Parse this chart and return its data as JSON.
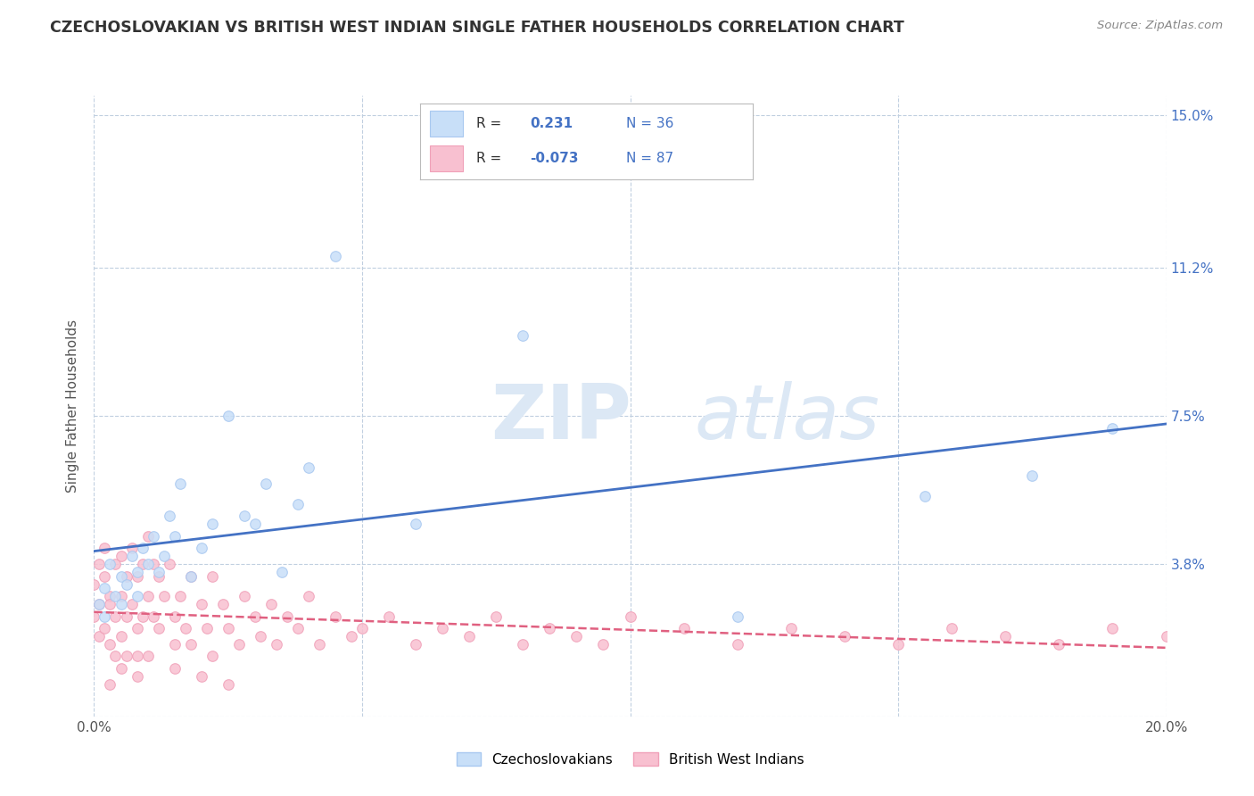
{
  "title": "CZECHOSLOVAKIAN VS BRITISH WEST INDIAN SINGLE FATHER HOUSEHOLDS CORRELATION CHART",
  "source": "Source: ZipAtlas.com",
  "ylabel": "Single Father Households",
  "xlim": [
    0.0,
    0.2
  ],
  "ylim": [
    0.0,
    0.155
  ],
  "ytick_positions": [
    0.0,
    0.038,
    0.075,
    0.112,
    0.15
  ],
  "ytick_labels": [
    "",
    "3.8%",
    "7.5%",
    "11.2%",
    "15.0%"
  ],
  "legend_label1": "Czechoslovakians",
  "legend_label2": "British West Indians",
  "color_czech": "#a8c8f0",
  "color_bwi": "#f0a0b8",
  "color_czech_fill": "#c8dff8",
  "color_bwi_fill": "#f8c0d0",
  "color_czech_line": "#4472c4",
  "color_bwi_line": "#e06080",
  "background_color": "#ffffff",
  "grid_color": "#c0cfe0",
  "czech_x": [
    0.001,
    0.002,
    0.002,
    0.003,
    0.004,
    0.005,
    0.005,
    0.006,
    0.007,
    0.008,
    0.008,
    0.009,
    0.01,
    0.011,
    0.012,
    0.013,
    0.014,
    0.015,
    0.016,
    0.018,
    0.02,
    0.022,
    0.025,
    0.028,
    0.03,
    0.032,
    0.035,
    0.038,
    0.04,
    0.045,
    0.06,
    0.08,
    0.12,
    0.155,
    0.175,
    0.19
  ],
  "czech_y": [
    0.028,
    0.032,
    0.025,
    0.038,
    0.03,
    0.035,
    0.028,
    0.033,
    0.04,
    0.036,
    0.03,
    0.042,
    0.038,
    0.045,
    0.036,
    0.04,
    0.05,
    0.045,
    0.058,
    0.035,
    0.042,
    0.048,
    0.075,
    0.05,
    0.048,
    0.058,
    0.036,
    0.053,
    0.062,
    0.115,
    0.048,
    0.095,
    0.025,
    0.055,
    0.06,
    0.072
  ],
  "bwi_x": [
    0.0,
    0.0,
    0.001,
    0.001,
    0.001,
    0.002,
    0.002,
    0.002,
    0.003,
    0.003,
    0.003,
    0.004,
    0.004,
    0.004,
    0.005,
    0.005,
    0.005,
    0.006,
    0.006,
    0.006,
    0.007,
    0.007,
    0.008,
    0.008,
    0.008,
    0.009,
    0.009,
    0.01,
    0.01,
    0.011,
    0.011,
    0.012,
    0.012,
    0.013,
    0.014,
    0.015,
    0.015,
    0.016,
    0.017,
    0.018,
    0.018,
    0.02,
    0.021,
    0.022,
    0.022,
    0.024,
    0.025,
    0.027,
    0.028,
    0.03,
    0.031,
    0.033,
    0.034,
    0.036,
    0.038,
    0.04,
    0.042,
    0.045,
    0.048,
    0.05,
    0.055,
    0.06,
    0.065,
    0.07,
    0.075,
    0.08,
    0.085,
    0.09,
    0.095,
    0.1,
    0.11,
    0.12,
    0.13,
    0.14,
    0.15,
    0.16,
    0.17,
    0.18,
    0.19,
    0.2,
    0.003,
    0.005,
    0.008,
    0.01,
    0.015,
    0.02,
    0.025
  ],
  "bwi_y": [
    0.025,
    0.033,
    0.038,
    0.028,
    0.02,
    0.035,
    0.022,
    0.042,
    0.03,
    0.018,
    0.028,
    0.038,
    0.025,
    0.015,
    0.04,
    0.03,
    0.02,
    0.035,
    0.025,
    0.015,
    0.042,
    0.028,
    0.035,
    0.022,
    0.015,
    0.038,
    0.025,
    0.045,
    0.03,
    0.038,
    0.025,
    0.035,
    0.022,
    0.03,
    0.038,
    0.025,
    0.018,
    0.03,
    0.022,
    0.035,
    0.018,
    0.028,
    0.022,
    0.035,
    0.015,
    0.028,
    0.022,
    0.018,
    0.03,
    0.025,
    0.02,
    0.028,
    0.018,
    0.025,
    0.022,
    0.03,
    0.018,
    0.025,
    0.02,
    0.022,
    0.025,
    0.018,
    0.022,
    0.02,
    0.025,
    0.018,
    0.022,
    0.02,
    0.018,
    0.025,
    0.022,
    0.018,
    0.022,
    0.02,
    0.018,
    0.022,
    0.02,
    0.018,
    0.022,
    0.02,
    0.008,
    0.012,
    0.01,
    0.015,
    0.012,
    0.01,
    0.008
  ]
}
